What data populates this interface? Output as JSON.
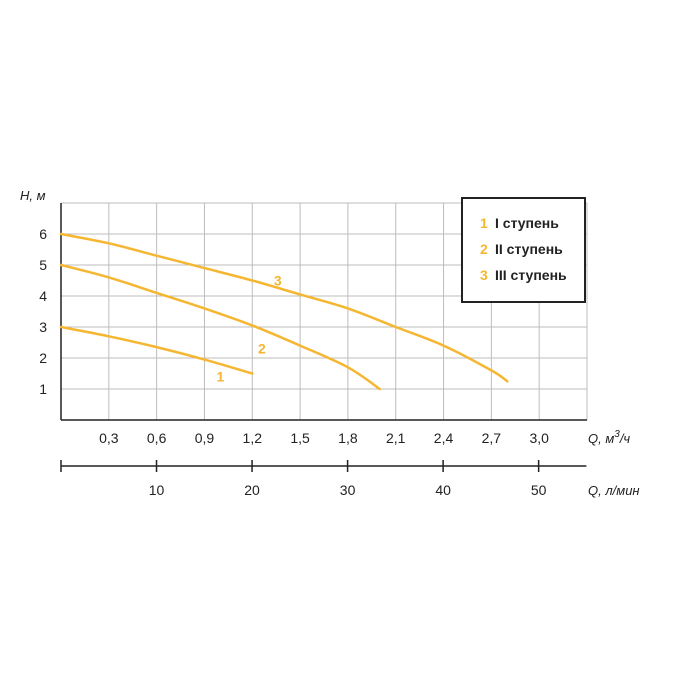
{
  "chart_data": {
    "type": "line",
    "ylabel": "H, м",
    "xlabel": "Q, м³/ч",
    "xlabel_main": "Q, м",
    "xlabel_sup": "3",
    "xlabel_tail": "/ч",
    "x2label": "Q, л/мин",
    "xlim": [
      0,
      3.3
    ],
    "ylim": [
      0,
      7
    ],
    "x_ticks": [
      "0,3",
      "0,6",
      "0,9",
      "1,2",
      "1,5",
      "1,8",
      "2,1",
      "2,4",
      "2,7",
      "3,0"
    ],
    "x_tick_values": [
      0.3,
      0.6,
      0.9,
      1.2,
      1.5,
      1.8,
      2.1,
      2.4,
      2.7,
      3.0
    ],
    "y_ticks": [
      "1",
      "2",
      "3",
      "4",
      "5",
      "6"
    ],
    "y_tick_values": [
      1,
      2,
      3,
      4,
      5,
      6
    ],
    "x2lim": [
      0,
      55
    ],
    "x2_ticks": [
      "10",
      "20",
      "30",
      "40",
      "50"
    ],
    "x2_tick_values": [
      10,
      20,
      30,
      40,
      50
    ],
    "grid": true,
    "legend_position": "top-right",
    "series": [
      {
        "name": "I ступень",
        "number": "1",
        "x": [
          0,
          0.3,
          0.6,
          0.9,
          1.2
        ],
        "y": [
          3.0,
          2.7,
          2.35,
          1.95,
          1.5
        ],
        "label_at": [
          1.0,
          1.4
        ]
      },
      {
        "name": "II ступень",
        "number": "2",
        "x": [
          0,
          0.3,
          0.6,
          0.9,
          1.2,
          1.5,
          1.8,
          2.0
        ],
        "y": [
          5.0,
          4.6,
          4.1,
          3.6,
          3.05,
          2.4,
          1.7,
          1.0
        ],
        "label_at": [
          1.26,
          2.3
        ]
      },
      {
        "name": "III ступень",
        "number": "3",
        "x": [
          0,
          0.3,
          0.6,
          0.9,
          1.2,
          1.5,
          1.8,
          2.1,
          2.4,
          2.7,
          2.8
        ],
        "y": [
          6.0,
          5.7,
          5.3,
          4.9,
          4.5,
          4.05,
          3.6,
          3.0,
          2.4,
          1.6,
          1.25
        ],
        "label_at": [
          1.36,
          4.5
        ]
      }
    ]
  },
  "colors": {
    "curve": "#f5b631",
    "grid": "#bdbdbd",
    "axis": "#222222",
    "legend_border": "#222222"
  }
}
